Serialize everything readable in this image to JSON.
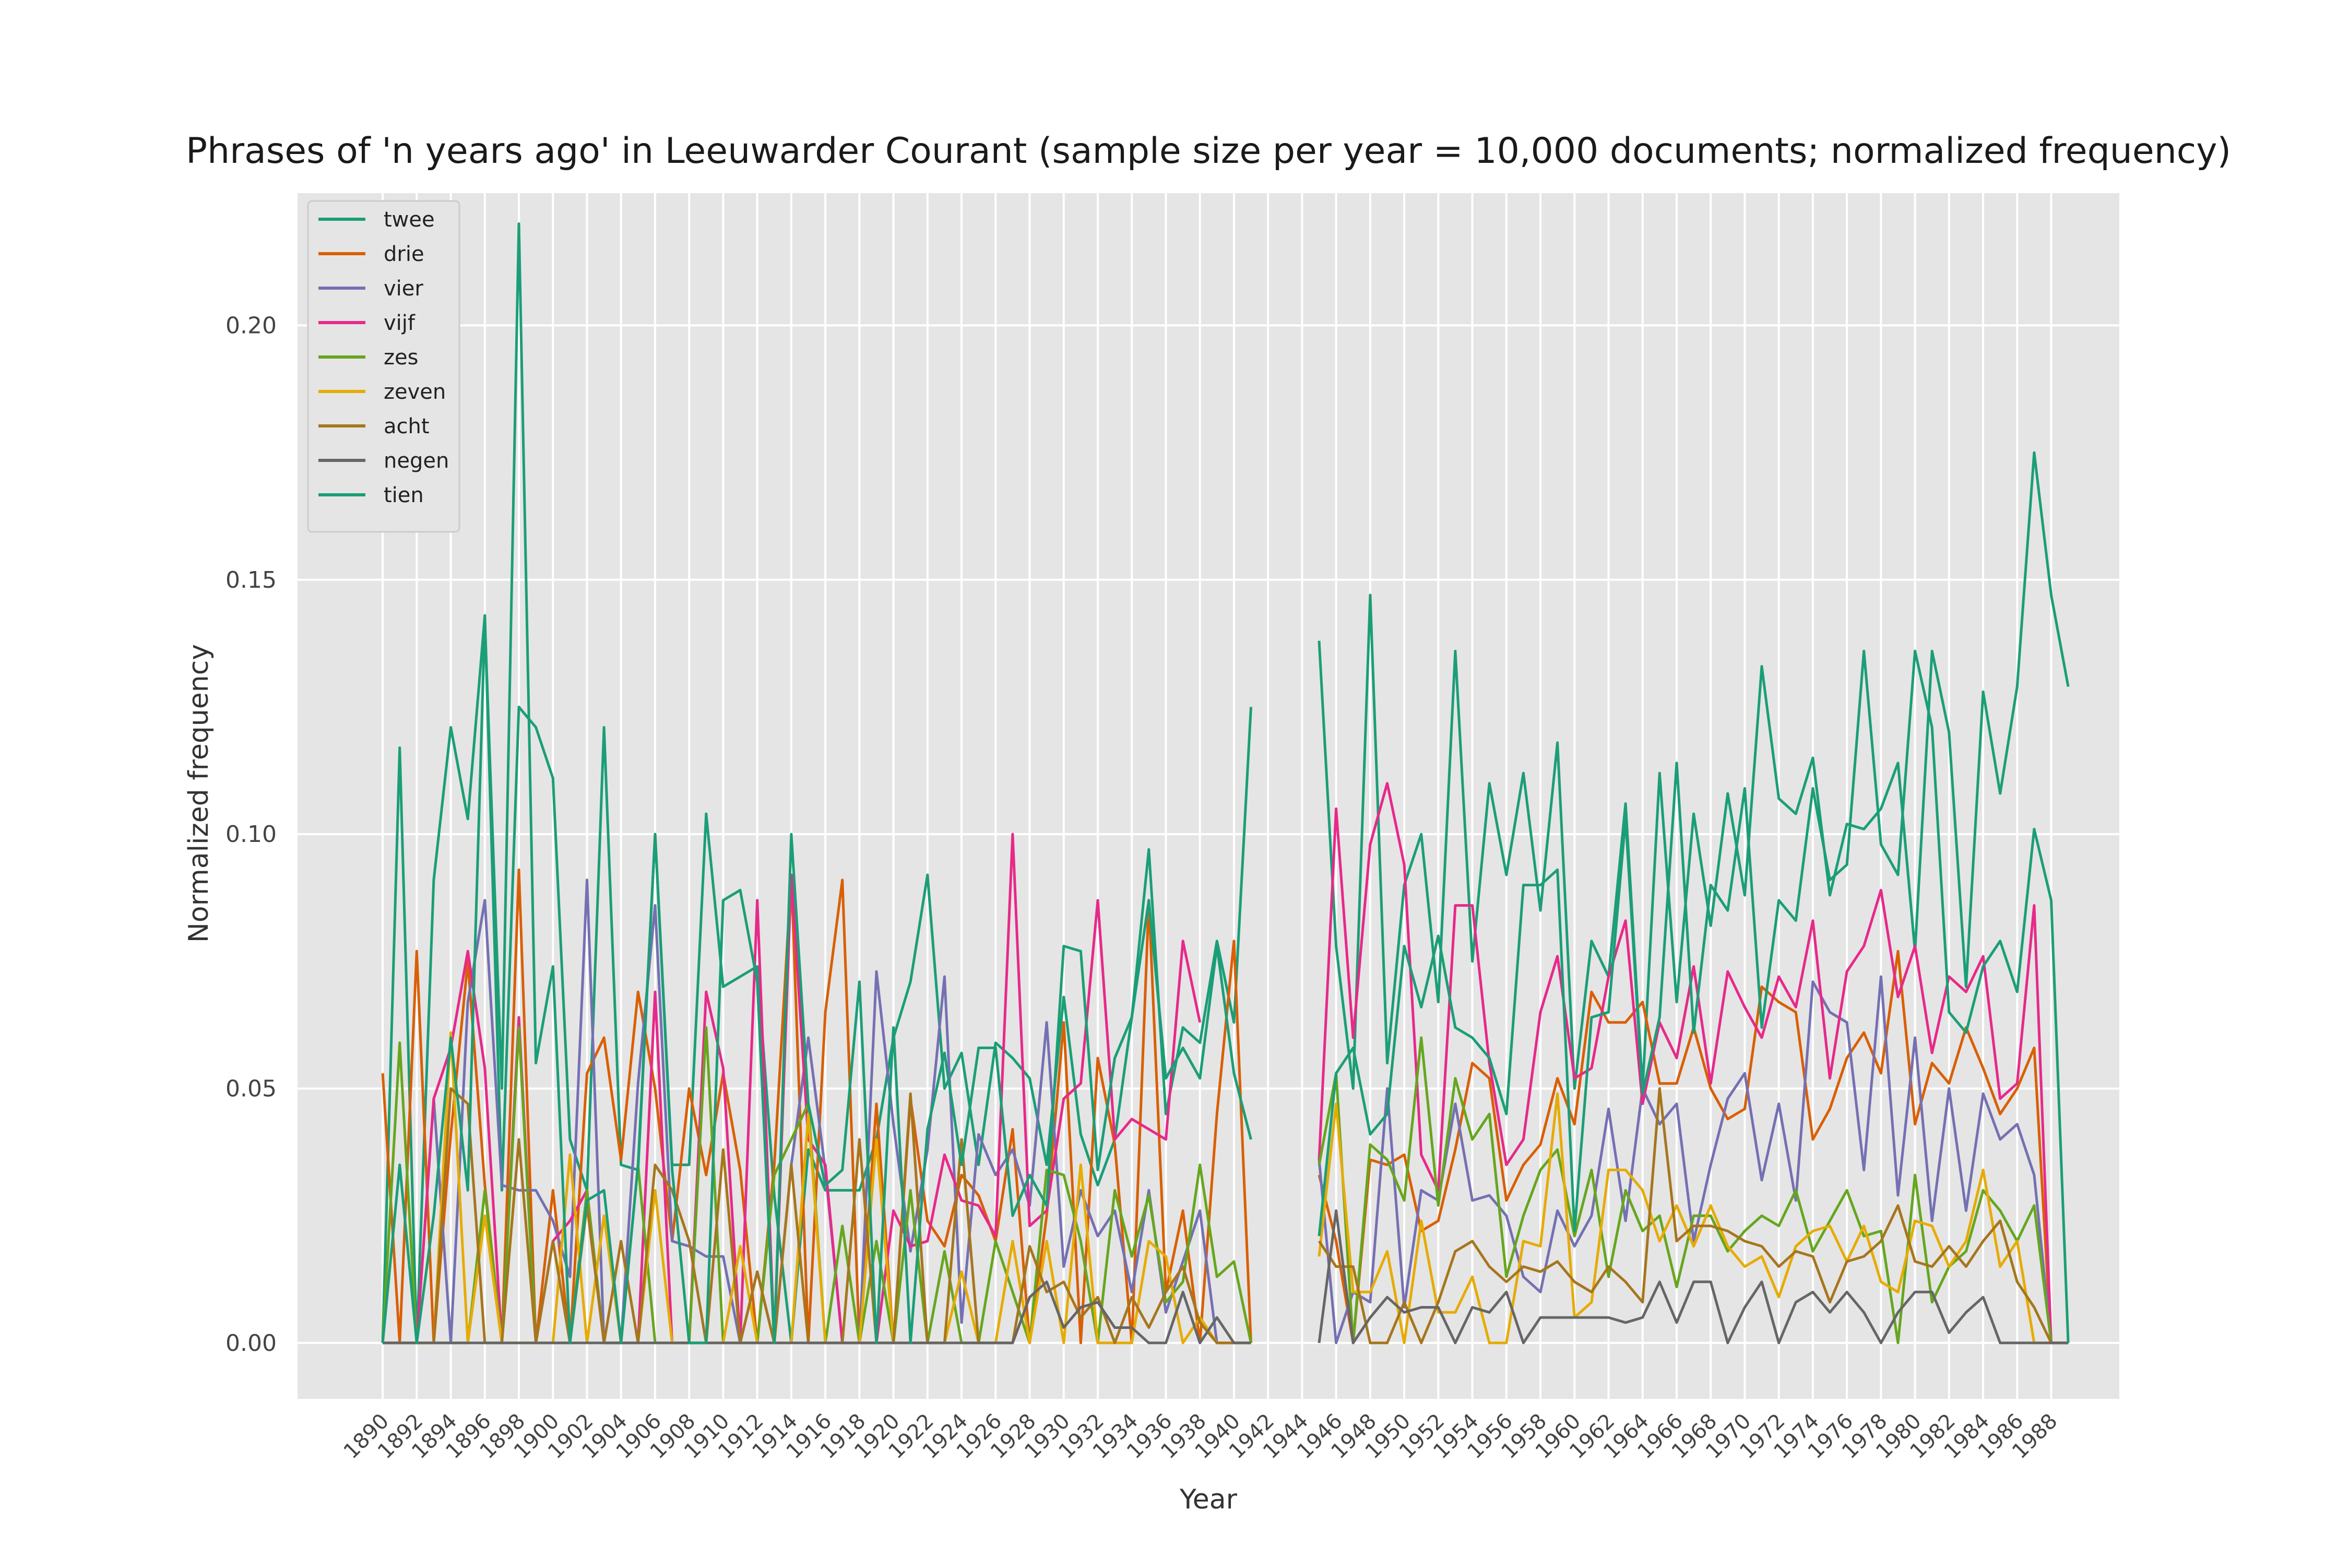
{
  "chart_data": {
    "type": "line",
    "title": "Phrases of 'n years ago' in Leeuwarder Courant (sample size per year = 10,000 documents; normalized frequency)",
    "xlabel": "Year",
    "ylabel": "Normalized frequency",
    "xlim": [
      1885,
      1992
    ],
    "ylim": [
      -0.011,
      0.226
    ],
    "x_ticks": [
      1890,
      1892,
      1894,
      1896,
      1898,
      1900,
      1902,
      1904,
      1906,
      1908,
      1910,
      1912,
      1914,
      1916,
      1918,
      1920,
      1922,
      1924,
      1926,
      1928,
      1930,
      1932,
      1934,
      1936,
      1938,
      1940,
      1942,
      1944,
      1946,
      1948,
      1950,
      1952,
      1954,
      1956,
      1958,
      1960,
      1962,
      1964,
      1966,
      1968,
      1970,
      1972,
      1974,
      1976,
      1978,
      1980,
      1982,
      1984,
      1986,
      1988
    ],
    "y_ticks": [
      0.0,
      0.05,
      0.1,
      0.15,
      0.2
    ],
    "y_tick_labels": [
      "0.00",
      "0.05",
      "0.10",
      "0.15",
      "0.20"
    ],
    "grid": true,
    "legend_position": "top-left",
    "background_color": "#e5e5e5",
    "missing_years": [
      1943,
      1944,
      1945
    ],
    "x_start": 1890,
    "x_end": 1989,
    "series": [
      {
        "name": "twee",
        "color": "#1b9e77",
        "values": [
          0,
          0.117,
          0,
          0.091,
          0.121,
          0.103,
          0.143,
          0.03,
          0.125,
          0.121,
          0.111,
          0.04,
          0.03,
          0.121,
          0.035,
          0.034,
          0.1,
          0.035,
          0.035,
          0.104,
          0.07,
          0.072,
          0.074,
          0.029,
          0,
          0.038,
          0.03,
          0.03,
          0.03,
          0.04,
          0.06,
          0.071,
          0.092,
          0.05,
          0.057,
          0.035,
          0.059,
          0.056,
          0.052,
          0.035,
          0.068,
          0.041,
          0.031,
          0.04,
          0.064,
          0.097,
          0.045,
          0.062,
          0.059,
          0.079,
          0.063,
          0.125,
          null,
          null,
          null,
          0.138,
          0.078,
          0.05,
          0.147,
          0.055,
          0.09,
          0.1,
          0.067,
          0.136,
          0.075,
          0.11,
          0.092,
          0.112,
          0.085,
          0.118,
          0.05,
          0.079,
          0.072,
          0.106,
          0.05,
          0.112,
          0.067,
          0.104,
          0.082,
          0.108,
          0.088,
          0.133,
          0.107,
          0.104,
          0.115,
          0.088,
          0.102,
          0.101,
          0.105,
          0.114,
          0.077,
          0.136,
          0.12,
          0.07,
          0.128,
          0.108,
          0.129,
          0.175,
          0.147,
          0.129
        ]
      },
      {
        "name": "drie",
        "color": "#d95f02",
        "values": [
          0.053,
          0,
          0.077,
          0,
          0.041,
          0.075,
          0.031,
          0,
          0.093,
          0,
          0.03,
          0,
          0.053,
          0.06,
          0.036,
          0.069,
          0.05,
          0.02,
          0.05,
          0.033,
          0.053,
          0.034,
          0,
          0.035,
          0.092,
          0,
          0.065,
          0.091,
          0,
          0.047,
          0,
          0.048,
          0.024,
          0.019,
          0.033,
          0.029,
          0.02,
          0.042,
          0,
          0.025,
          0.063,
          0,
          0.056,
          0.039,
          0,
          0.087,
          0.01,
          0.026,
          0,
          0.045,
          0.079,
          0,
          null,
          null,
          null,
          0.033,
          0.02,
          0,
          0.036,
          0.035,
          0.037,
          0.022,
          0.024,
          0.038,
          0.055,
          0.052,
          0.028,
          0.035,
          0.039,
          0.052,
          0.043,
          0.069,
          0.063,
          0.063,
          0.067,
          0.051,
          0.051,
          0.062,
          0.05,
          0.044,
          0.046,
          0.07,
          0.067,
          0.065,
          0.04,
          0.046,
          0.056,
          0.061,
          0.053,
          0.077,
          0.043,
          0.055,
          0.051,
          0.062,
          0.054,
          0.045,
          0.05,
          0.058,
          0,
          0
        ]
      },
      {
        "name": "vier",
        "color": "#7570b3",
        "values": [
          0,
          0,
          0,
          0.048,
          0,
          0.067,
          0.087,
          0.031,
          0.03,
          0.03,
          0.024,
          0.013,
          0.091,
          0,
          0,
          0.051,
          0.086,
          0.02,
          0.019,
          0.017,
          0.017,
          0,
          0.014,
          0,
          0.035,
          0.06,
          0.034,
          0,
          0,
          0.073,
          0.043,
          0.018,
          0.038,
          0.072,
          0.004,
          0.041,
          0.033,
          0.038,
          0.027,
          0.063,
          0.015,
          0.03,
          0.021,
          0.026,
          0.01,
          0.03,
          0.006,
          0.016,
          0.026,
          0,
          0,
          0,
          null,
          null,
          null,
          0.036,
          0,
          0.01,
          0.008,
          0.05,
          0.007,
          0.03,
          0.028,
          0.047,
          0.028,
          0.029,
          0.025,
          0.013,
          0.01,
          0.026,
          0.019,
          0.025,
          0.046,
          0.024,
          0.05,
          0.043,
          0.047,
          0.02,
          0.035,
          0.048,
          0.053,
          0.032,
          0.047,
          0.028,
          0.071,
          0.065,
          0.063,
          0.034,
          0.072,
          0.029,
          0.06,
          0.024,
          0.05,
          0.026,
          0.049,
          0.04,
          0.043,
          0.033,
          0,
          0
        ]
      },
      {
        "name": "vijf",
        "color": "#e7298a",
        "values": [
          0,
          0,
          0,
          0.048,
          0.058,
          0.077,
          0.054,
          0,
          0.064,
          0,
          0.02,
          0.024,
          0.03,
          0,
          0,
          0,
          0.069,
          0,
          0,
          0.069,
          0.054,
          0,
          0.087,
          0,
          0.092,
          0.04,
          0.035,
          0,
          0,
          0,
          0.026,
          0.019,
          0.02,
          0.037,
          0.028,
          0.027,
          0.021,
          0.1,
          0.023,
          0.026,
          0.048,
          0.051,
          0.087,
          0.04,
          0.044,
          0.042,
          0.04,
          0.079,
          0.063,
          null,
          null,
          null,
          null,
          null,
          null,
          0.036,
          0.105,
          0.06,
          0.098,
          0.11,
          0.094,
          0.037,
          0.03,
          0.086,
          0.086,
          0.055,
          0.035,
          0.04,
          0.065,
          0.076,
          0.052,
          0.054,
          0.072,
          0.083,
          0.047,
          0.063,
          0.056,
          0.074,
          0.051,
          0.073,
          0.066,
          0.06,
          0.072,
          0.066,
          0.083,
          0.052,
          0.073,
          0.078,
          0.089,
          0.068,
          0.078,
          0.057,
          0.072,
          0.069,
          0.076,
          0.048,
          0.051,
          0.086,
          0,
          0
        ]
      },
      {
        "name": "zes",
        "color": "#66a61e",
        "values": [
          0,
          0.059,
          0,
          0,
          0,
          0,
          0.03,
          0,
          0.062,
          0,
          0,
          0,
          0.03,
          0,
          0,
          0.035,
          0,
          0,
          0,
          0.062,
          0,
          0,
          0,
          0.033,
          0.04,
          0.047,
          0,
          0.023,
          0,
          0.02,
          0,
          0.03,
          0,
          0.018,
          0,
          0,
          0.02,
          0.01,
          0,
          0.034,
          0.033,
          0.02,
          0,
          0.03,
          0.017,
          0.029,
          0.008,
          0.012,
          0.035,
          0.013,
          0.016,
          0,
          null,
          null,
          null,
          0.035,
          0.053,
          0,
          0.039,
          0.036,
          0.028,
          0.06,
          0.027,
          0.052,
          0.04,
          0.045,
          0.013,
          0.025,
          0.034,
          0.038,
          0.021,
          0.034,
          0.013,
          0.03,
          0.022,
          0.025,
          0.011,
          0.025,
          0.025,
          0.018,
          0.022,
          0.025,
          0.023,
          0.03,
          0.018,
          0.024,
          0.03,
          0.021,
          0.022,
          0,
          0.033,
          0.008,
          0.015,
          0.018,
          0.03,
          0.026,
          0.02,
          0.027,
          0,
          0
        ]
      },
      {
        "name": "zeven",
        "color": "#e6ab02",
        "values": [
          0,
          0,
          0,
          0,
          0.061,
          0,
          0.025,
          0,
          0,
          0,
          0,
          0.037,
          0,
          0.025,
          0,
          0,
          0.03,
          0,
          0,
          0,
          0,
          0.019,
          0,
          0,
          0,
          0.045,
          0,
          0,
          0,
          0.04,
          0,
          0,
          0,
          0,
          0.014,
          0,
          0,
          0.02,
          0,
          0.02,
          0,
          0.035,
          0,
          0,
          0,
          0.02,
          0.017,
          0,
          0.005,
          0,
          0,
          0,
          null,
          null,
          null,
          0.017,
          0.047,
          0.01,
          0.01,
          0.018,
          0,
          0.024,
          0.006,
          0.006,
          0.013,
          0,
          0,
          0.02,
          0.019,
          0.049,
          0.005,
          0.008,
          0.034,
          0.034,
          0.03,
          0.02,
          0.027,
          0.019,
          0.027,
          0.019,
          0.015,
          0.017,
          0.009,
          0.019,
          0.022,
          0.023,
          0.016,
          0.023,
          0.012,
          0.01,
          0.024,
          0.023,
          0.015,
          0.02,
          0.034,
          0.015,
          0.02,
          0,
          0
        ]
      },
      {
        "name": "acht",
        "color": "#a6761d",
        "values": [
          0,
          0,
          0,
          0,
          0.05,
          0.047,
          0,
          0,
          0.04,
          0,
          0.02,
          0,
          0.027,
          0,
          0.02,
          0,
          0.035,
          0.03,
          0.02,
          0,
          0.038,
          0,
          0.014,
          0,
          0.035,
          0,
          0,
          0,
          0.04,
          0,
          0,
          0.049,
          0,
          0,
          0.04,
          0,
          0,
          0,
          0.019,
          0.01,
          0.012,
          0.005,
          0.009,
          0,
          0.009,
          0.003,
          0.01,
          0.015,
          0.004,
          0,
          0,
          0,
          null,
          null,
          null,
          0.02,
          0.015,
          0.015,
          0,
          0,
          0.008,
          0,
          0.008,
          0.018,
          0.02,
          0.015,
          0.012,
          0.015,
          0.014,
          0.016,
          0.012,
          0.01,
          0.015,
          0.012,
          0.008,
          0.05,
          0.02,
          0.023,
          0.023,
          0.022,
          0.02,
          0.019,
          0.015,
          0.018,
          0.017,
          0.008,
          0.016,
          0.017,
          0.02,
          0.027,
          0.016,
          0.015,
          0.019,
          0.015,
          0.02,
          0.024,
          0.012,
          0.007,
          0,
          0
        ]
      },
      {
        "name": "negen",
        "color": "#666666",
        "values": [
          0,
          0,
          0,
          0,
          0,
          0,
          0,
          0,
          0,
          0,
          0,
          0,
          0,
          0,
          0,
          0,
          0,
          0,
          0,
          0,
          0,
          0,
          0,
          0,
          0,
          0,
          0,
          0,
          0,
          0,
          0,
          0,
          0,
          0,
          0,
          0,
          0,
          0,
          0.009,
          0.012,
          0.003,
          0.007,
          0.008,
          0.003,
          0.003,
          0,
          0,
          0.01,
          0,
          0.005,
          0,
          0,
          null,
          null,
          null,
          0,
          0.026,
          0,
          0.005,
          0.009,
          0.006,
          0.007,
          0.007,
          0,
          0.007,
          0.006,
          0.01,
          0,
          0.005,
          0.005,
          0.005,
          0.005,
          0.005,
          0.004,
          0.005,
          0.012,
          0.004,
          0.012,
          0.012,
          0,
          0.007,
          0.012,
          0,
          0.008,
          0.01,
          0.006,
          0.01,
          0.006,
          0,
          0.006,
          0.01,
          0.01,
          0.002,
          0.006,
          0.009,
          0,
          0,
          0,
          0,
          0
        ]
      },
      {
        "name": "tien",
        "color": "#1b9e77",
        "values": [
          0,
          0.035,
          0,
          0.025,
          0.06,
          0.03,
          0.142,
          0.05,
          0.22,
          0.055,
          0.074,
          0,
          0.028,
          0.03,
          0,
          0.035,
          0.1,
          0.034,
          0,
          0,
          0.087,
          0.089,
          0.071,
          0,
          0.1,
          0.047,
          0.031,
          0.034,
          0.071,
          0,
          0.062,
          0,
          0.042,
          0.057,
          0.035,
          0.058,
          0.058,
          0.025,
          0.033,
          0.027,
          0.078,
          0.077,
          0.034,
          0.056,
          0.064,
          0.087,
          0.052,
          0.058,
          0.052,
          0.078,
          0.053,
          0.04,
          null,
          null,
          null,
          0.021,
          0.053,
          0.058,
          0.041,
          0.045,
          0.078,
          0.066,
          0.08,
          0.062,
          0.06,
          0.056,
          0.045,
          0.09,
          0.09,
          0.093,
          0.022,
          0.064,
          0.065,
          0.103,
          0.049,
          0.064,
          0.114,
          0.061,
          0.09,
          0.085,
          0.109,
          0.062,
          0.087,
          0.083,
          0.109,
          0.091,
          0.094,
          0.136,
          0.098,
          0.092,
          0.136,
          0.121,
          0.065,
          0.061,
          0.074,
          0.079,
          0.069,
          0.101,
          0.087,
          0
        ]
      }
    ]
  }
}
